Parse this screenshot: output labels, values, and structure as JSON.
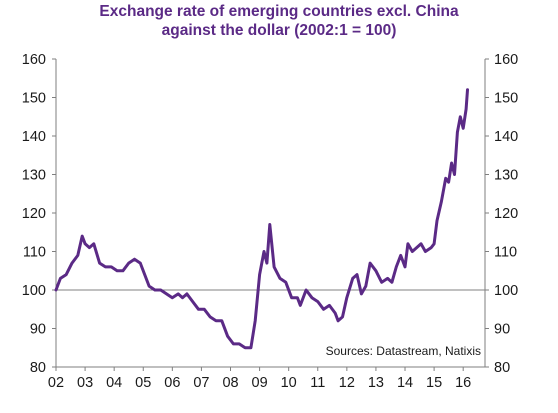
{
  "chart_data": {
    "type": "line",
    "title_line1": "Exchange rate of emerging countries excl. China",
    "title_line2": "against the dollar (2002:1 = 100)",
    "source": "Sources: Datastream, Natixis",
    "x_tick_labels": [
      "02",
      "03",
      "04",
      "05",
      "06",
      "07",
      "08",
      "09",
      "10",
      "11",
      "12",
      "13",
      "14",
      "15",
      "16"
    ],
    "y_ticks": [
      80,
      90,
      100,
      110,
      120,
      130,
      140,
      150,
      160
    ],
    "ylim": [
      80,
      160
    ],
    "xlim": [
      2002.0,
      2016.75
    ],
    "reference_line": 100,
    "grid": false,
    "line_color": "#5b2a86",
    "series": [
      {
        "x": [
          2002.0,
          2002.15,
          2002.35,
          2002.55,
          2002.75,
          2002.9,
          2003.0,
          2003.15,
          2003.3,
          2003.5,
          2003.7,
          2003.9,
          2004.1,
          2004.3,
          2004.5,
          2004.7,
          2004.9,
          2005.05,
          2005.2,
          2005.4,
          2005.6,
          2005.8,
          2006.0,
          2006.2,
          2006.35,
          2006.5,
          2006.7,
          2006.9,
          2007.1,
          2007.3,
          2007.5,
          2007.7,
          2007.9,
          2008.1,
          2008.3,
          2008.5,
          2008.7,
          2008.85,
          2009.0,
          2009.15,
          2009.25,
          2009.35,
          2009.5,
          2009.7,
          2009.9,
          2010.1,
          2010.3,
          2010.4,
          2010.6,
          2010.8,
          2011.0,
          2011.2,
          2011.4,
          2011.6,
          2011.7,
          2011.85,
          2012.0,
          2012.2,
          2012.35,
          2012.5,
          2012.65,
          2012.8,
          2013.0,
          2013.2,
          2013.4,
          2013.55,
          2013.7,
          2013.85,
          2014.0,
          2014.1,
          2014.25,
          2014.4,
          2014.55,
          2014.7,
          2014.9,
          2015.0,
          2015.1,
          2015.25,
          2015.4,
          2015.5,
          2015.6,
          2015.7,
          2015.8,
          2015.9,
          2016.0,
          2016.1,
          2016.15
        ],
        "values": [
          100,
          103,
          104,
          107,
          109,
          114,
          112,
          111,
          112,
          107,
          106,
          106,
          105,
          105,
          107,
          108,
          107,
          104,
          101,
          100,
          100,
          99,
          98,
          99,
          98,
          99,
          97,
          95,
          95,
          93,
          92,
          92,
          88,
          86,
          86,
          85,
          85,
          92,
          104,
          110,
          107,
          117,
          106,
          103,
          102,
          98,
          98,
          96,
          100,
          98,
          97,
          95,
          96,
          94,
          92,
          93,
          98,
          103,
          104,
          99,
          101,
          107,
          105,
          102,
          103,
          102,
          106,
          109,
          106,
          112,
          110,
          111,
          112,
          110,
          111,
          112,
          118,
          123,
          129,
          128,
          133,
          130,
          141,
          145,
          142,
          147,
          152
        ]
      }
    ]
  }
}
